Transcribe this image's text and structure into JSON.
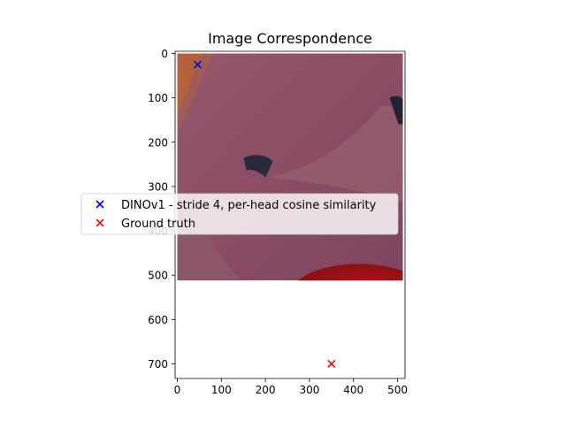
{
  "chart_data": {
    "type": "scatter",
    "title": "Image Correspondence",
    "xlabel": "",
    "ylabel": "",
    "xlim": [
      -5,
      517
    ],
    "ylim": [
      733,
      -5
    ],
    "y_inverted": true,
    "grid": false,
    "legend_position": "center-left",
    "image_extent": [
      0,
      512,
      512,
      0
    ],
    "xticks": [
      0,
      100,
      200,
      300,
      400,
      500
    ],
    "yticks": [
      0,
      100,
      200,
      300,
      400,
      500,
      600,
      700
    ],
    "series": [
      {
        "name": "DINOv1 - stride 4, per-head cosine similarity",
        "marker": "x",
        "color": "#0000ff",
        "points": [
          [
            46,
            25
          ]
        ]
      },
      {
        "name": "Ground truth",
        "marker": "x",
        "color": "#ff0000",
        "points": [
          [
            350,
            700
          ]
        ]
      }
    ]
  }
}
